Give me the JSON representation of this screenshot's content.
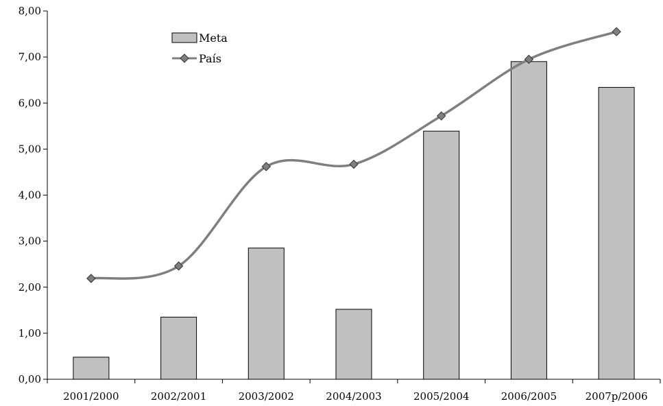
{
  "chart_data": {
    "type": "bar",
    "categories": [
      "2001/2000",
      "2002/2001",
      "2003/2002",
      "2004/2003",
      "2005/2004",
      "2006/2005",
      "2007p/2006"
    ],
    "series": [
      {
        "name": "Meta",
        "type": "bar",
        "values": [
          0.48,
          1.35,
          2.85,
          1.52,
          5.39,
          6.9,
          6.34
        ],
        "color": "#c0c0c0"
      },
      {
        "name": "País",
        "type": "line",
        "values": [
          2.19,
          2.46,
          4.62,
          4.67,
          5.72,
          6.95,
          7.55
        ],
        "color": "#7f7f7f"
      }
    ],
    "ylim": [
      0,
      8
    ],
    "yticks": [
      "0,00",
      "1,00",
      "2,00",
      "3,00",
      "4,00",
      "5,00",
      "6,00",
      "7,00",
      "8,00"
    ],
    "legend_position": "top-left",
    "grid": false
  }
}
